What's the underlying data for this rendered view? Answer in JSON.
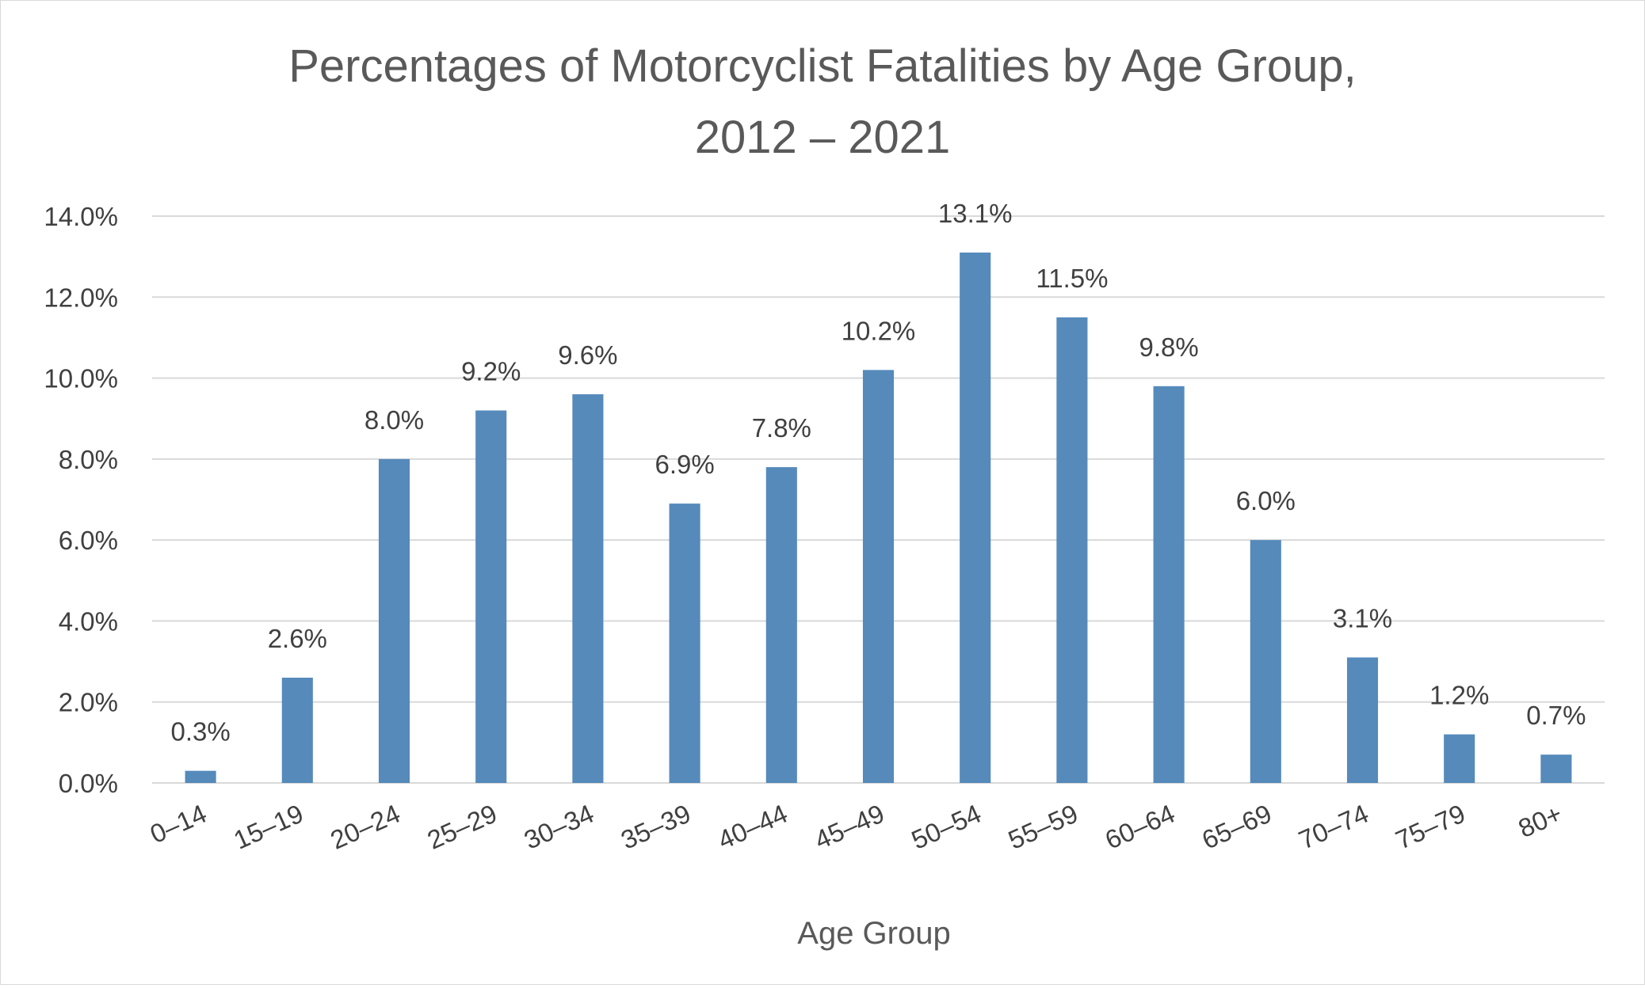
{
  "chart_data": {
    "type": "bar",
    "title_lines": [
      "Percentages of Motorcyclist Fatalities by Age Group,",
      "2012 – 2021"
    ],
    "xlabel": "Age Group",
    "ylabel": "",
    "categories": [
      "0–14",
      "15–19",
      "20–24",
      "25–29",
      "30–34",
      "35–39",
      "40–44",
      "45–49",
      "50–54",
      "55–59",
      "60–64",
      "65–69",
      "70–74",
      "75–79",
      "80+"
    ],
    "values": [
      0.3,
      2.6,
      8.0,
      9.2,
      9.6,
      6.9,
      7.8,
      10.2,
      13.1,
      11.5,
      9.8,
      6.0,
      3.1,
      1.2,
      0.7
    ],
    "data_labels": [
      "0.3%",
      "2.6%",
      "8.0%",
      "9.2%",
      "9.6%",
      "6.9%",
      "7.8%",
      "10.2%",
      "13.1%",
      "11.5%",
      "9.8%",
      "6.0%",
      "3.1%",
      "1.2%",
      "0.7%"
    ],
    "ylim": [
      0,
      14
    ],
    "y_ticks": [
      0,
      2,
      4,
      6,
      8,
      10,
      12,
      14
    ],
    "y_tick_labels": [
      "0.0%",
      "2.0%",
      "4.0%",
      "6.0%",
      "8.0%",
      "10.0%",
      "12.0%",
      "14.0%"
    ],
    "grid": true,
    "legend": "none",
    "bar_color": "#558ABB",
    "grid_color": "#D9D9D9"
  }
}
